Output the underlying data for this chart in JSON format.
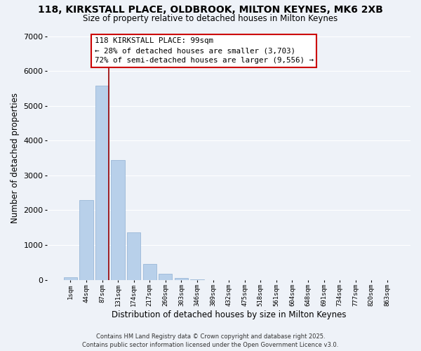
{
  "title_line1": "118, KIRKSTALL PLACE, OLDBROOK, MILTON KEYNES, MK6 2XB",
  "title_line2": "Size of property relative to detached houses in Milton Keynes",
  "xlabel": "Distribution of detached houses by size in Milton Keynes",
  "ylabel": "Number of detached properties",
  "bar_color": "#b8d0ea",
  "bar_edge_color": "#9ab8d8",
  "categories": [
    "1sqm",
    "44sqm",
    "87sqm",
    "131sqm",
    "174sqm",
    "217sqm",
    "260sqm",
    "303sqm",
    "346sqm",
    "389sqm",
    "432sqm",
    "475sqm",
    "518sqm",
    "561sqm",
    "604sqm",
    "648sqm",
    "691sqm",
    "734sqm",
    "777sqm",
    "820sqm",
    "863sqm"
  ],
  "values": [
    70,
    2300,
    5580,
    3450,
    1370,
    450,
    170,
    55,
    8,
    0,
    0,
    0,
    0,
    0,
    0,
    0,
    0,
    0,
    0,
    0,
    0
  ],
  "ylim": [
    0,
    7000
  ],
  "yticks": [
    0,
    1000,
    2000,
    3000,
    4000,
    5000,
    6000,
    7000
  ],
  "annotation_title": "118 KIRKSTALL PLACE: 99sqm",
  "annotation_line1": "← 28% of detached houses are smaller (3,703)",
  "annotation_line2": "72% of semi-detached houses are larger (9,556) →",
  "vline_color": "#990000",
  "vline_x": 2.42,
  "background_color": "#eef2f8",
  "grid_color": "#ffffff",
  "footer_line1": "Contains HM Land Registry data © Crown copyright and database right 2025.",
  "footer_line2": "Contains public sector information licensed under the Open Government Licence v3.0."
}
